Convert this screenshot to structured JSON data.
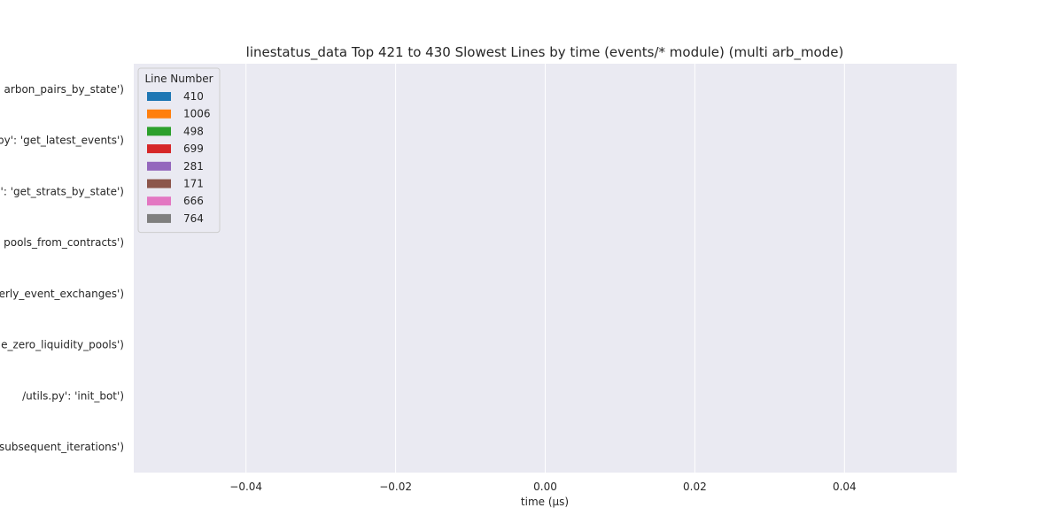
{
  "chart_data": {
    "type": "bar",
    "orientation": "horizontal",
    "title": "linestatus_data Top 421 to 430 Slowest Lines by time (events/* module) (multi arb_mode)",
    "xlabel": "time (µs)",
    "ylabel": "",
    "xlim": [
      -0.055,
      0.055
    ],
    "xticks": [
      -0.04,
      -0.02,
      0.0,
      0.02,
      0.04
    ],
    "xtick_labels": [
      "−0.04",
      "−0.02",
      "0.00",
      "0.02",
      "0.04"
    ],
    "categories": [
      "arbon_pairs_by_state')",
      "py': 'get_latest_events')",
      "': 'get_strats_by_state')",
      "pools_from_contracts')",
      "erly_event_exchanges')",
      "e_zero_liquidity_pools')",
      "/utils.py': 'init_bot')",
      "subsequent_iterations')"
    ],
    "series": [
      {
        "name": "410",
        "color": "#1f77b4",
        "values": [
          0,
          0,
          0,
          0,
          0,
          0,
          0,
          0
        ]
      },
      {
        "name": "1006",
        "color": "#ff7f0e",
        "values": [
          0,
          0,
          0,
          0,
          0,
          0,
          0,
          0
        ]
      },
      {
        "name": "498",
        "color": "#2ca02c",
        "values": [
          0,
          0,
          0,
          0,
          0,
          0,
          0,
          0
        ]
      },
      {
        "name": "699",
        "color": "#d62728",
        "values": [
          0,
          0,
          0,
          0,
          0,
          0,
          0,
          0
        ]
      },
      {
        "name": "281",
        "color": "#9467bd",
        "values": [
          0,
          0,
          0,
          0,
          0,
          0,
          0,
          0
        ]
      },
      {
        "name": "171",
        "color": "#8c564b",
        "values": [
          0,
          0,
          0,
          0,
          0,
          0,
          0,
          0
        ]
      },
      {
        "name": "666",
        "color": "#e377c2",
        "values": [
          0,
          0,
          0,
          0,
          0,
          0,
          0,
          0
        ]
      },
      {
        "name": "764",
        "color": "#7f7f7f",
        "values": [
          0,
          0,
          0,
          0,
          0,
          0,
          0,
          0
        ]
      }
    ],
    "legend": {
      "title": "Line Number",
      "placement": "top-left"
    },
    "grid": true,
    "background": "#eaeaf2",
    "grid_color": "#ffffff"
  }
}
